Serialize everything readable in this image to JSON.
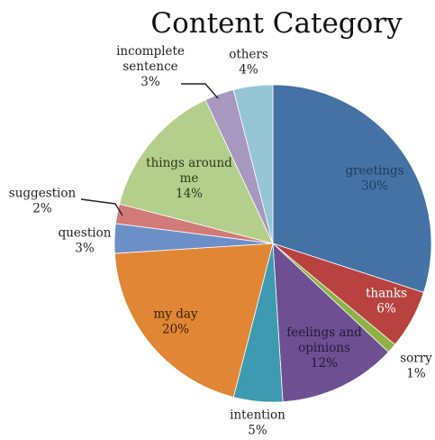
{
  "chart_data": {
    "type": "pie",
    "title": "Content Category",
    "slices": [
      {
        "label": "greetings",
        "value": 30,
        "value_label": "30%",
        "color": "#4472a4"
      },
      {
        "label": "thanks",
        "value": 6,
        "value_label": "6%",
        "color": "#b8423f"
      },
      {
        "label": "sorry",
        "value": 1,
        "value_label": "1%",
        "color": "#8fb244"
      },
      {
        "label": "feelings and opinions",
        "value": 12,
        "value_label": "12%",
        "color": "#6e4f92"
      },
      {
        "label": "intention",
        "value": 5,
        "value_label": "5%",
        "color": "#3d9ab0"
      },
      {
        "label": "my day",
        "value": 20,
        "value_label": "20%",
        "color": "#e08635"
      },
      {
        "label": "question",
        "value": 3,
        "value_label": "3%",
        "color": "#6c8fc8"
      },
      {
        "label": "suggestion",
        "value": 2,
        "value_label": "2%",
        "color": "#d27a77"
      },
      {
        "label": "things around me",
        "value": 14,
        "value_label": "14%",
        "color": "#b4ce8c"
      },
      {
        "label": "incomplete sentence",
        "value": 3,
        "value_label": "3%",
        "color": "#a798bf"
      },
      {
        "label": "others",
        "value": 4,
        "value_label": "4%",
        "color": "#96c6d6"
      }
    ],
    "start_angle_deg": 0,
    "direction": "clockwise",
    "legend": "none"
  }
}
